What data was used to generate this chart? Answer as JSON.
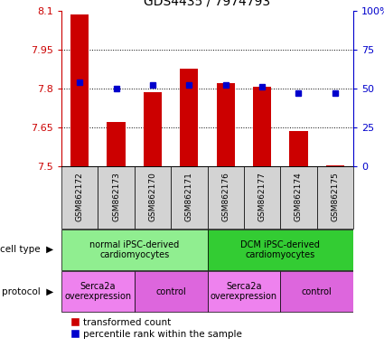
{
  "title": "GDS4435 / 7974793",
  "samples": [
    "GSM862172",
    "GSM862173",
    "GSM862170",
    "GSM862171",
    "GSM862176",
    "GSM862177",
    "GSM862174",
    "GSM862175"
  ],
  "red_values": [
    8.085,
    7.67,
    7.785,
    7.875,
    7.82,
    7.805,
    7.635,
    7.505
  ],
  "blue_values": [
    54,
    50,
    52,
    52,
    52,
    51,
    47,
    47
  ],
  "ylim_left": [
    7.5,
    8.1
  ],
  "ylim_right": [
    0,
    100
  ],
  "yticks_left": [
    7.5,
    7.65,
    7.8,
    7.95,
    8.1
  ],
  "ytick_labels_left": [
    "7.5",
    "7.65",
    "7.8",
    "7.95",
    "8.1"
  ],
  "yticks_right": [
    0,
    25,
    50,
    75,
    100
  ],
  "ytick_labels_right": [
    "0",
    "25",
    "50",
    "75",
    "100%"
  ],
  "cell_type_groups": [
    {
      "label": "normal iPSC-derived\ncardiomyocytes",
      "start": 0,
      "end": 4,
      "color": "#90ee90"
    },
    {
      "label": "DCM iPSC-derived\ncardiomyocytes",
      "start": 4,
      "end": 8,
      "color": "#33cc33"
    }
  ],
  "protocol_groups": [
    {
      "label": "Serca2a\noverexpression",
      "start": 0,
      "end": 2,
      "color": "#ee82ee"
    },
    {
      "label": "control",
      "start": 2,
      "end": 4,
      "color": "#dd66dd"
    },
    {
      "label": "Serca2a\noverexpression",
      "start": 4,
      "end": 6,
      "color": "#ee82ee"
    },
    {
      "label": "control",
      "start": 6,
      "end": 8,
      "color": "#dd66dd"
    }
  ],
  "legend_red_label": "transformed count",
  "legend_blue_label": "percentile rank within the sample",
  "bar_color": "#cc0000",
  "marker_color": "#0000cc",
  "background_color": "#ffffff",
  "left_axis_color": "#cc0000",
  "right_axis_color": "#0000cc",
  "sample_box_color": "#d3d3d3",
  "grid_dotted_color": "#000000",
  "side_label_fontsize": 8,
  "bar_width": 0.5
}
